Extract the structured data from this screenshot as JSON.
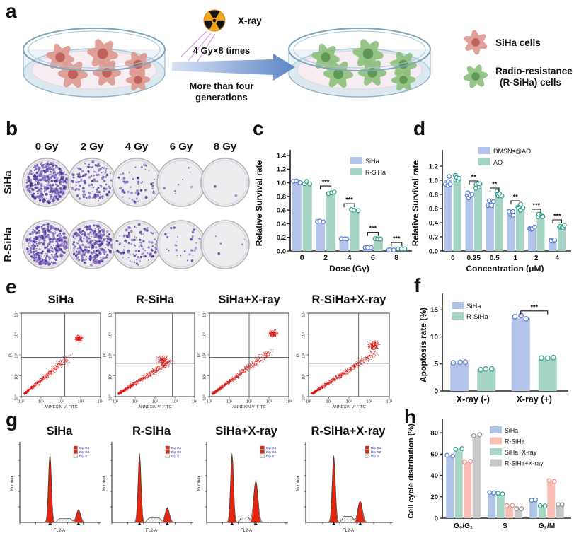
{
  "panel_labels": {
    "a": "a",
    "b": "b",
    "c": "c",
    "d": "d",
    "e": "e",
    "f": "f",
    "g": "g",
    "h": "h"
  },
  "colors": {
    "siha_blue_fill": "#b3c3ea",
    "siha_blue_edge": "#5d7fd0",
    "rsiha_teal_fill": "#a5d4c4",
    "rsiha_teal_edge": "#2f9e8c",
    "rsiha_pink_fill": "#f8bdb4",
    "rsiha_pink_edge": "#ef8d80",
    "gray_fill": "#c8c8c8",
    "gray_edge": "#909090",
    "flow_red": "#d21010",
    "colony_purple": "#6a4bb4",
    "arrow_blue": "#5d85c6"
  },
  "panel_a": {
    "xray_label": "X-ray",
    "arrow_text_top": "4 Gy×8 times",
    "arrow_text_bottom_line1": "More than four",
    "arrow_text_bottom_line2": "generations",
    "left_dish_cell_color": "#dd9a92",
    "left_dish_nucleus": "#b95c54",
    "right_dish_cell_color": "#8fc07e",
    "right_dish_nucleus": "#5a9450",
    "legend": [
      {
        "label_lines": [
          "SiHa cells"
        ],
        "color": "#dd9a92",
        "nucleus": "#b95c54"
      },
      {
        "label_lines": [
          "Radio-resistance",
          "(R-SiHa) cells"
        ],
        "color": "#8fc07e",
        "nucleus": "#5a9450"
      }
    ]
  },
  "panel_b": {
    "col_headers": [
      "0 Gy",
      "2 Gy",
      "4 Gy",
      "6 Gy",
      "8 Gy"
    ],
    "row_labels": [
      "SiHa",
      "R-SiHa"
    ],
    "colony_counts": [
      [
        400,
        150,
        55,
        8,
        2
      ],
      [
        410,
        340,
        110,
        28,
        5
      ]
    ]
  },
  "chart_data": [
    {
      "id": "c",
      "type": "bar",
      "ylabel": "Relative Survival rate",
      "xlabel": "Dose (Gy)",
      "categories": [
        "0",
        "2",
        "4",
        "6",
        "8"
      ],
      "yticks": [
        "0.0",
        "0.2",
        "0.4",
        "0.6",
        "0.8",
        "1.0",
        "1.2",
        "1.4"
      ],
      "ylim": [
        0,
        1.4
      ],
      "series": [
        {
          "name": "SiHa",
          "fill": "#b3c3ea",
          "edge": "#5d7fd0",
          "values": [
            1.01,
            0.43,
            0.18,
            0.05,
            0.015
          ]
        },
        {
          "name": "R-SiHa",
          "fill": "#a5d4c4",
          "edge": "#2f9e8c",
          "values": [
            1.0,
            0.86,
            0.6,
            0.18,
            0.03
          ]
        }
      ],
      "legend_order": [
        "SiHa",
        "R-SiHa"
      ],
      "significance": [
        {
          "cat": 1,
          "label": "***"
        },
        {
          "cat": 2,
          "label": "***"
        },
        {
          "cat": 3,
          "label": "***"
        },
        {
          "cat": 4,
          "label": "***"
        }
      ],
      "points_per_bar": 3,
      "jitter": 0.05
    },
    {
      "id": "d",
      "type": "bar",
      "ylabel": "Relative Survival rate",
      "xlabel": "Concentration (μM)",
      "categories": [
        "0",
        "0.25",
        "0.5",
        "1",
        "2",
        "4"
      ],
      "yticks": [
        "0.0",
        "0.2",
        "0.4",
        "0.6",
        "0.8",
        "1.0",
        "1.2"
      ],
      "ylim": [
        0,
        1.35
      ],
      "series": [
        {
          "name": "DMSNs@AO",
          "fill": "#b3c3ea",
          "edge": "#5d7fd0",
          "values": [
            1.0,
            0.78,
            0.68,
            0.53,
            0.33,
            0.15
          ]
        },
        {
          "name": "AO",
          "fill": "#a5d4c4",
          "edge": "#2f9e8c",
          "values": [
            1.01,
            0.9,
            0.8,
            0.62,
            0.5,
            0.35
          ]
        }
      ],
      "legend_order": [
        "DMSNs@AO",
        "AO"
      ],
      "significance": [
        {
          "cat": 1,
          "label": "**"
        },
        {
          "cat": 2,
          "label": "**"
        },
        {
          "cat": 3,
          "label": "**"
        },
        {
          "cat": 4,
          "label": "***"
        },
        {
          "cat": 5,
          "label": "***"
        }
      ],
      "points_per_bar": 5,
      "jitter": 0.14
    },
    {
      "id": "e",
      "type": "scatter",
      "xlabel": "ANNEXIN V- FITC",
      "ylabel": "PI",
      "xticks": [
        "10⁰",
        "10¹",
        "10²",
        "10³",
        "10⁴"
      ],
      "yticks": [
        "10⁰",
        "10¹",
        "10²",
        "10³",
        "10⁴"
      ],
      "plots": [
        {
          "title": "SiHa",
          "quad": [
            0.55,
            0.47
          ],
          "n": 700,
          "len": 0.55,
          "slope": 0.78,
          "cluster": {
            "x": 0.72,
            "y": 0.7,
            "n": 220,
            "s": 0.07
          }
        },
        {
          "title": "R-SiHa",
          "quad": [
            0.72,
            0.4
          ],
          "n": 900,
          "len": 0.66,
          "slope": 0.6,
          "cluster": {
            "x": 0.6,
            "y": 0.44,
            "n": 180,
            "s": 0.1
          }
        },
        {
          "title": "SiHa+X-ray",
          "quad": [
            0.5,
            0.47
          ],
          "n": 900,
          "len": 0.72,
          "slope": 0.7,
          "cluster": {
            "x": 0.8,
            "y": 0.76,
            "n": 220,
            "s": 0.08
          }
        },
        {
          "title": "R-SiHa+X-ray",
          "quad": [
            0.62,
            0.4
          ],
          "n": 950,
          "len": 0.78,
          "slope": 0.62,
          "cluster": {
            "x": 0.8,
            "y": 0.62,
            "n": 240,
            "s": 0.09
          }
        }
      ]
    },
    {
      "id": "f",
      "type": "bar",
      "ylabel": "Apoptosis rate (%)",
      "xlabel": "",
      "categories": [
        "X-ray (-)",
        "X-ray (+)"
      ],
      "yticks": [
        "0",
        "5",
        "10",
        "15"
      ],
      "ylim": [
        0,
        17
      ],
      "series": [
        {
          "name": "SiHa",
          "fill": "#b3c3ea",
          "edge": "#5d7fd0",
          "values": [
            5.2,
            13.5
          ]
        },
        {
          "name": "R-SiHa",
          "fill": "#a5d4c4",
          "edge": "#2f9e8c",
          "values": [
            4.0,
            6.2
          ]
        }
      ],
      "legend_order": [
        "SiHa",
        "R-SiHa"
      ],
      "significance": [
        {
          "cat": 1,
          "label": "***"
        }
      ],
      "points_per_bar": 3,
      "jitter": 0.08
    },
    {
      "id": "g",
      "type": "hist",
      "xlabel": "FL2-A",
      "ylabel": "Number",
      "legend": [
        "Dip G1",
        "Dip G2",
        "Dip S"
      ],
      "plots": [
        {
          "title": "SiHa",
          "g1": {
            "x": 0.38,
            "h": 0.93
          },
          "g2": {
            "x": 0.74,
            "h": 0.17
          },
          "s": 0.05
        },
        {
          "title": "R-SiHa",
          "g1": {
            "x": 0.35,
            "h": 0.93
          },
          "g2": {
            "x": 0.7,
            "h": 0.2
          },
          "s": 0.06
        },
        {
          "title": "SiHa+X-ray",
          "g1": {
            "x": 0.32,
            "h": 0.93
          },
          "g2": {
            "x": 0.62,
            "h": 0.56
          },
          "s": 0.07
        },
        {
          "title": "R-SiHa+X-ray",
          "g1": {
            "x": 0.33,
            "h": 0.9
          },
          "g2": {
            "x": 0.64,
            "h": 0.29
          },
          "s": 0.08
        }
      ]
    },
    {
      "id": "h",
      "type": "bar",
      "ylabel": "Cell cycle distribution (%)",
      "xlabel": "",
      "categories": [
        "G₀/G₁",
        "S",
        "G₂/M"
      ],
      "yticks": [
        "0",
        "20",
        "40",
        "60",
        "80"
      ],
      "ylim": [
        0,
        88
      ],
      "series": [
        {
          "name": "SiHa",
          "fill": "#b0c4e8",
          "edge": "#5d7fd0",
          "values": [
            59,
            24,
            17
          ]
        },
        {
          "name": "SiHa+X-ray",
          "fill": "#a9d6c6",
          "edge": "#2f9e8c",
          "values": [
            65,
            23,
            11.5
          ]
        },
        {
          "name": "R-SiHa",
          "fill": "#f8bdb4",
          "edge": "#ef8d80",
          "values": [
            53,
            12,
            35
          ]
        },
        {
          "name": "R-SiHa+X-ray",
          "fill": "#c8c8c8",
          "edge": "#909090",
          "values": [
            78,
            9,
            13
          ]
        }
      ],
      "legend_order": [
        "SiHa",
        "R-SiHa",
        "SiHa+X-ray",
        "R-SiHa+X-ray"
      ],
      "significance": [],
      "points_per_bar": 2,
      "jitter": 0.04
    }
  ]
}
